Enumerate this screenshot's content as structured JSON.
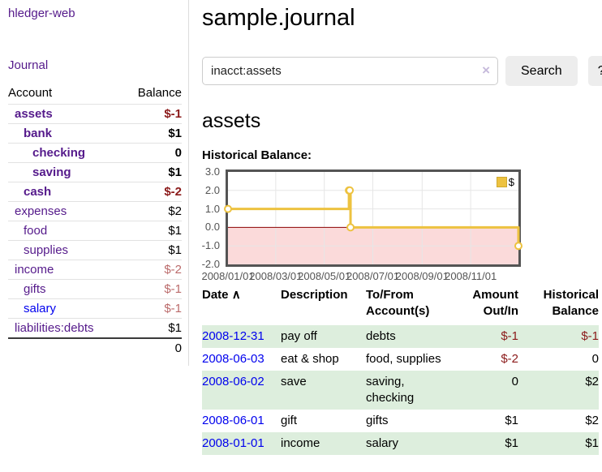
{
  "app": {
    "title": "hledger-web",
    "nav_journal": "Journal"
  },
  "sidebar": {
    "header": {
      "account": "Account",
      "balance": "Balance"
    },
    "rows": [
      {
        "account": "assets",
        "balance": "$-1",
        "depth": 1,
        "bold": true,
        "link_color": "purple",
        "balance_class": "neg-strong"
      },
      {
        "account": "bank",
        "balance": "$1",
        "depth": 2,
        "bold": true,
        "link_color": "purple",
        "balance_class": ""
      },
      {
        "account": "checking",
        "balance": "0",
        "depth": 3,
        "bold": true,
        "link_color": "purple",
        "balance_class": ""
      },
      {
        "account": "saving",
        "balance": "$1",
        "depth": 3,
        "bold": true,
        "link_color": "purple",
        "balance_class": ""
      },
      {
        "account": "cash",
        "balance": "$-2",
        "depth": 2,
        "bold": true,
        "link_color": "purple",
        "balance_class": "neg-strong"
      },
      {
        "account": "expenses",
        "balance": "$2",
        "depth": 1,
        "bold": false,
        "link_color": "purple",
        "balance_class": ""
      },
      {
        "account": "food",
        "balance": "$1",
        "depth": 2,
        "bold": false,
        "link_color": "purple",
        "balance_class": ""
      },
      {
        "account": "supplies",
        "balance": "$1",
        "depth": 2,
        "bold": false,
        "link_color": "purple",
        "balance_class": ""
      },
      {
        "account": "income",
        "balance": "$-2",
        "depth": 1,
        "bold": false,
        "link_color": "purple",
        "balance_class": "neg-soft"
      },
      {
        "account": "gifts",
        "balance": "$-1",
        "depth": 2,
        "bold": false,
        "link_color": "purple",
        "balance_class": "neg-soft"
      },
      {
        "account": "salary",
        "balance": "$-1",
        "depth": 2,
        "bold": false,
        "link_color": "blue",
        "balance_class": "neg-soft"
      },
      {
        "account": "liabilities:debts",
        "balance": "$1",
        "depth": 1,
        "bold": false,
        "link_color": "purple",
        "balance_class": ""
      }
    ],
    "total": "0"
  },
  "main": {
    "title": "sample.journal",
    "search": {
      "value": "inacct:assets",
      "clear_icon": "×",
      "button": "Search",
      "help": "?"
    },
    "account_heading": "assets",
    "chart_label": "Historical Balance:"
  },
  "chart_data": {
    "type": "line",
    "title": "Historical Balance:",
    "step": true,
    "series": [
      {
        "name": "$",
        "color": "#edc240",
        "points": [
          [
            "2008-01-01",
            1
          ],
          [
            "2008-06-01",
            2
          ],
          [
            "2008-06-02",
            2
          ],
          [
            "2008-06-03",
            0
          ],
          [
            "2008-12-31",
            -1
          ]
        ]
      }
    ],
    "ylim": [
      -2,
      3
    ],
    "yticks": [
      "3.0",
      "2.0",
      "1.0",
      "0.0",
      "-1.0",
      "-2.0"
    ],
    "ytick_values": [
      3,
      2,
      1,
      0,
      -1,
      -2
    ],
    "xticks": [
      "2008/01/01",
      "2008/03/01",
      "2008/05/01",
      "2008/07/01",
      "2008/09/01",
      "2008/11/01"
    ],
    "legend_position": "top-right",
    "grid": true,
    "colors": {
      "grid": "#e6e6e6",
      "border": "#545454",
      "negative_fill": "#fbdada",
      "zero_line": "#8b0000",
      "marker_fill": "#ffffff"
    }
  },
  "register": {
    "headers": {
      "date": "Date",
      "sort_icon": "∧",
      "description": "Description",
      "accounts": "To/From Account(s)",
      "amount": "Amount Out/In",
      "balance": "Historical Balance"
    },
    "rows": [
      {
        "date": "2008-12-31",
        "description": "pay off",
        "accounts": "debts",
        "amount": "$-1",
        "balance": "$-1",
        "amount_class": "neg-strong",
        "balance_class": "neg-strong"
      },
      {
        "date": "2008-06-03",
        "description": "eat & shop",
        "accounts": "food, supplies",
        "amount": "$-2",
        "balance": "0",
        "amount_class": "neg-strong",
        "balance_class": ""
      },
      {
        "date": "2008-06-02",
        "description": "save",
        "accounts": "saving, checking",
        "amount": "0",
        "balance": "$2",
        "amount_class": "",
        "balance_class": ""
      },
      {
        "date": "2008-06-01",
        "description": "gift",
        "accounts": "gifts",
        "amount": "$1",
        "balance": "$2",
        "amount_class": "",
        "balance_class": ""
      },
      {
        "date": "2008-01-01",
        "description": "income",
        "accounts": "salary",
        "amount": "$1",
        "balance": "$1",
        "amount_class": "",
        "balance_class": ""
      }
    ]
  }
}
